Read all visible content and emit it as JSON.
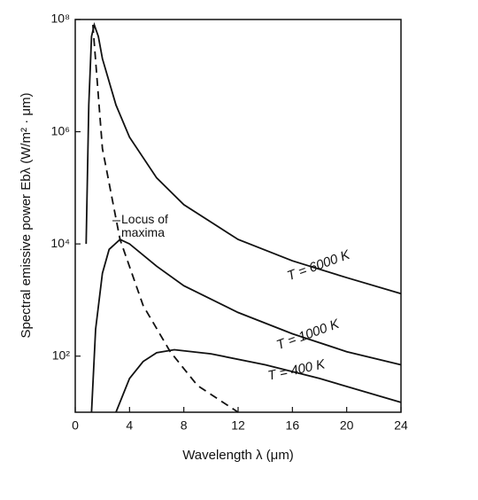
{
  "chart_data": {
    "type": "line",
    "x_label": "Wavelength λ (μm)",
    "y_label": "Spectral emissive power Ebλ (W/m² · μm)",
    "xlim": [
      0,
      24
    ],
    "xticks": [
      0,
      4,
      8,
      12,
      16,
      20,
      24
    ],
    "ylim": [
      10,
      100000000
    ],
    "yticks": [
      {
        "value": 100,
        "label": "10²"
      },
      {
        "value": 10000,
        "label": "10⁴"
      },
      {
        "value": 1000000,
        "label": "10⁶"
      },
      {
        "value": 100000000,
        "label": "10⁸"
      }
    ],
    "y_scale": "log",
    "series": [
      {
        "name": "T = 6000 K",
        "color": "#111111",
        "style": "solid",
        "x": [
          0.8,
          1.0,
          1.2,
          1.4,
          1.7,
          2,
          3,
          4,
          6,
          8,
          12,
          16,
          20,
          24
        ],
        "values": [
          10000,
          3000000,
          50000000,
          80000000,
          50000000,
          20000000,
          3000000,
          800000,
          150000,
          50000,
          12000,
          5000,
          2500,
          1300
        ]
      },
      {
        "name": "T = 1000 K",
        "color": "#111111",
        "style": "solid",
        "x": [
          1.2,
          1.5,
          2,
          2.5,
          3.3,
          4,
          6,
          8,
          12,
          16,
          20,
          24
        ],
        "values": [
          10,
          300,
          3000,
          8000,
          12000,
          10000,
          4000,
          1800,
          600,
          250,
          120,
          70
        ]
      },
      {
        "name": "T = 400 K",
        "color": "#111111",
        "style": "solid",
        "x": [
          3,
          4,
          5,
          6,
          7.3,
          10,
          14,
          18,
          24
        ],
        "values": [
          10,
          40,
          80,
          115,
          130,
          110,
          70,
          40,
          15
        ]
      },
      {
        "name": "Locus of maxima",
        "color": "#111111",
        "style": "dashed",
        "x": [
          1.3,
          2,
          3.3,
          5,
          7,
          9,
          12
        ],
        "values": [
          80000000,
          500000,
          12000,
          800,
          120,
          30,
          10
        ]
      }
    ]
  }
}
